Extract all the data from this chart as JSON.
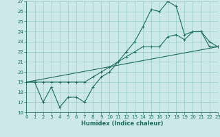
{
  "xlabel": "Humidex (Indice chaleur)",
  "bg_color": "#cce8e8",
  "grid_color": "#99cccc",
  "line_color": "#1a6b5a",
  "xmin": 0,
  "xmax": 23,
  "ymin": 16,
  "ymax": 27,
  "series1_x": [
    0,
    1,
    2,
    3,
    4,
    5,
    6,
    7,
    8,
    9,
    10,
    11,
    12,
    13,
    14,
    15,
    16,
    17,
    18,
    19,
    20,
    21,
    22,
    23
  ],
  "series1_y": [
    19,
    19,
    17,
    18.5,
    16.5,
    17.5,
    17.5,
    17.0,
    18.5,
    19.5,
    20,
    21,
    22,
    23,
    24.5,
    26.2,
    26,
    27,
    26.5,
    23.7,
    24,
    24,
    23,
    22.5
  ],
  "series2_x": [
    0,
    1,
    2,
    3,
    4,
    5,
    6,
    7,
    8,
    9,
    10,
    11,
    12,
    13,
    14,
    15,
    16,
    17,
    18,
    19,
    20,
    21,
    22,
    23
  ],
  "series2_y": [
    19,
    19,
    19,
    19,
    19,
    19,
    19,
    19,
    19.5,
    20,
    20.5,
    21,
    21.5,
    22,
    22.5,
    22.5,
    22.5,
    23.5,
    23.7,
    23.2,
    24,
    24,
    22.5,
    22.5
  ],
  "series3_x": [
    0,
    23
  ],
  "series3_y": [
    19.0,
    22.5
  ]
}
